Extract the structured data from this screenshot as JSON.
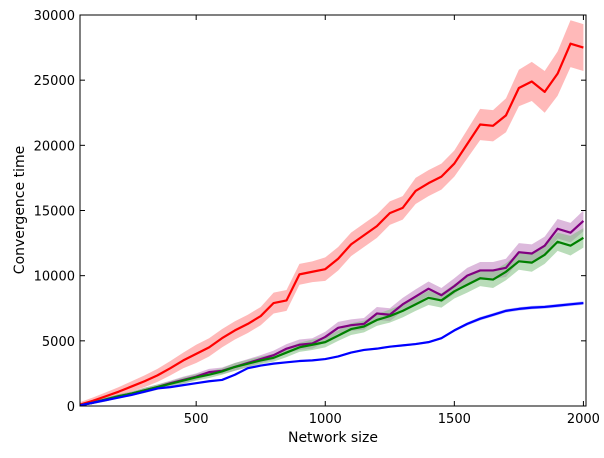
{
  "chart_data": {
    "type": "line",
    "title": "",
    "xlabel": "Network size",
    "ylabel": "Convergence time",
    "xlim": [
      50,
      2010
    ],
    "ylim": [
      0,
      30000
    ],
    "x_ticks": [
      500,
      1000,
      1500,
      2000
    ],
    "x_tick_labels": [
      "500",
      "1000",
      "1500",
      "2000"
    ],
    "y_ticks": [
      0,
      5000,
      10000,
      15000,
      20000,
      25000,
      30000
    ],
    "y_tick_labels": [
      "0",
      "5000",
      "10000",
      "15000",
      "20000",
      "25000",
      "30000"
    ],
    "grid": false,
    "legend": "none",
    "series": [
      {
        "color": "#ff0000",
        "band_color": "#ff8080",
        "x": [
          50,
          100,
          150,
          200,
          250,
          300,
          350,
          400,
          450,
          500,
          550,
          600,
          650,
          700,
          750,
          800,
          850,
          900,
          950,
          1000,
          1050,
          1100,
          1150,
          1200,
          1250,
          1300,
          1350,
          1400,
          1450,
          1500,
          1550,
          1600,
          1650,
          1700,
          1750,
          1800,
          1850,
          1900,
          1950,
          2000
        ],
        "y": [
          100,
          400,
          750,
          1100,
          1500,
          1900,
          2350,
          2900,
          3500,
          4000,
          4500,
          5200,
          5800,
          6300,
          6900,
          7900,
          8100,
          10100,
          10300,
          10500,
          11300,
          12400,
          13100,
          13800,
          14800,
          15200,
          16500,
          17100,
          17600,
          18600,
          20100,
          21600,
          21500,
          22300,
          24400,
          24900,
          24100,
          25500,
          27800,
          27500
        ],
        "band": [
          200,
          250,
          300,
          350,
          400,
          450,
          500,
          550,
          600,
          700,
          700,
          700,
          700,
          700,
          700,
          800,
          800,
          800,
          800,
          900,
          900,
          900,
          900,
          900,
          900,
          900,
          1000,
          1000,
          1000,
          1000,
          1100,
          1200,
          1200,
          1300,
          1400,
          1500,
          1600,
          1700,
          1800,
          1800
        ]
      },
      {
        "color": "#800080",
        "band_color": "#c080c0",
        "x": [
          50,
          100,
          150,
          200,
          250,
          300,
          350,
          400,
          450,
          500,
          550,
          600,
          650,
          700,
          750,
          800,
          850,
          900,
          950,
          1000,
          1050,
          1100,
          1150,
          1200,
          1250,
          1300,
          1350,
          1400,
          1450,
          1500,
          1550,
          1600,
          1650,
          1700,
          1750,
          1800,
          1850,
          1900,
          1950,
          2000
        ],
        "y": [
          50,
          250,
          500,
          750,
          950,
          1200,
          1450,
          1750,
          2000,
          2250,
          2600,
          2700,
          3000,
          3300,
          3600,
          3900,
          4400,
          4700,
          4800,
          5300,
          6000,
          6200,
          6300,
          7100,
          7000,
          7800,
          8400,
          9000,
          8500,
          9200,
          10000,
          10400,
          10400,
          10600,
          11800,
          11700,
          12300,
          13600,
          13300,
          14200
        ],
        "band": [
          100,
          100,
          150,
          150,
          150,
          200,
          200,
          200,
          250,
          250,
          250,
          250,
          300,
          300,
          300,
          350,
          350,
          400,
          400,
          400,
          450,
          450,
          450,
          500,
          500,
          500,
          550,
          550,
          550,
          600,
          600,
          650,
          650,
          700,
          700,
          700,
          700,
          750,
          750,
          800
        ]
      },
      {
        "color": "#008000",
        "band_color": "#80c080",
        "x": [
          50,
          100,
          150,
          200,
          250,
          300,
          350,
          400,
          450,
          500,
          550,
          600,
          650,
          700,
          750,
          800,
          850,
          900,
          950,
          1000,
          1050,
          1100,
          1150,
          1200,
          1250,
          1300,
          1350,
          1400,
          1450,
          1500,
          1550,
          1600,
          1650,
          1700,
          1750,
          1800,
          1850,
          1900,
          1950,
          2000
        ],
        "y": [
          50,
          250,
          500,
          750,
          950,
          1200,
          1450,
          1700,
          1950,
          2200,
          2400,
          2650,
          3000,
          3250,
          3500,
          3700,
          4100,
          4500,
          4700,
          4900,
          5400,
          5900,
          6100,
          6600,
          6900,
          7300,
          7800,
          8300,
          8100,
          8800,
          9300,
          9800,
          9700,
          10300,
          11100,
          11000,
          11600,
          12600,
          12300,
          12900
        ],
        "band": [
          100,
          100,
          150,
          150,
          150,
          200,
          200,
          200,
          250,
          250,
          250,
          250,
          300,
          300,
          300,
          300,
          350,
          350,
          400,
          400,
          400,
          450,
          450,
          450,
          500,
          500,
          500,
          550,
          550,
          550,
          600,
          600,
          650,
          650,
          650,
          700,
          700,
          700,
          750,
          750
        ]
      },
      {
        "color": "#0000ff",
        "band_color": "#8080ff",
        "x": [
          50,
          100,
          150,
          200,
          250,
          300,
          350,
          400,
          450,
          500,
          550,
          600,
          650,
          700,
          750,
          800,
          850,
          900,
          950,
          1000,
          1050,
          1100,
          1150,
          1200,
          1250,
          1300,
          1350,
          1400,
          1450,
          1500,
          1550,
          1600,
          1650,
          1700,
          1750,
          1800,
          1850,
          1900,
          1950,
          2000
        ],
        "y": [
          50,
          250,
          450,
          650,
          850,
          1100,
          1350,
          1450,
          1600,
          1750,
          1900,
          2000,
          2400,
          2900,
          3100,
          3250,
          3350,
          3450,
          3500,
          3600,
          3800,
          4100,
          4300,
          4400,
          4550,
          4650,
          4750,
          4900,
          5200,
          5800,
          6300,
          6700,
          7000,
          7300,
          7450,
          7550,
          7600,
          7700,
          7800,
          7900
        ],
        "band": [
          50,
          50,
          50,
          50,
          50,
          50,
          50,
          50,
          50,
          50,
          50,
          50,
          50,
          60,
          60,
          60,
          60,
          60,
          60,
          60,
          70,
          70,
          70,
          70,
          70,
          80,
          80,
          80,
          90,
          100,
          120,
          130,
          130,
          130,
          130,
          130,
          130,
          130,
          130,
          130
        ]
      }
    ]
  }
}
